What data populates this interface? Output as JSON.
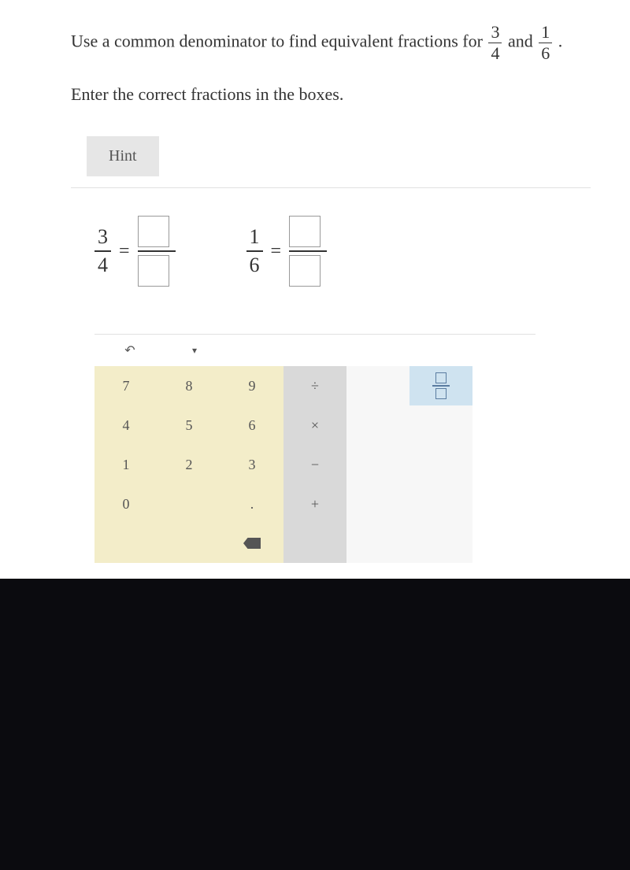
{
  "question": {
    "prefix": "Use a common denominator to find equivalent fractions for ",
    "frac1": {
      "num": "3",
      "den": "4"
    },
    "connector": " and ",
    "frac2": {
      "num": "1",
      "den": "6"
    },
    "suffix": "."
  },
  "instruction": "Enter the correct fractions in the boxes.",
  "hint_label": "Hint",
  "eq1": {
    "num": "3",
    "den": "4"
  },
  "eq2": {
    "num": "1",
    "den": "6"
  },
  "eq_sign": "=",
  "toolbar": {
    "undo": "↶"
  },
  "keys": {
    "k7": "7",
    "k8": "8",
    "k9": "9",
    "k4": "4",
    "k5": "5",
    "k6": "6",
    "k1": "1",
    "k2": "2",
    "k3": "3",
    "k0": "0",
    "dot": ".",
    "div": "÷",
    "mul": "×",
    "sub": "−",
    "add": "+"
  },
  "colors": {
    "num_key_bg": "#f3edc9",
    "op_key_bg": "#d9d9d9",
    "sp_key_bg": "#cfe3f0",
    "page_bg": "#ffffff"
  }
}
